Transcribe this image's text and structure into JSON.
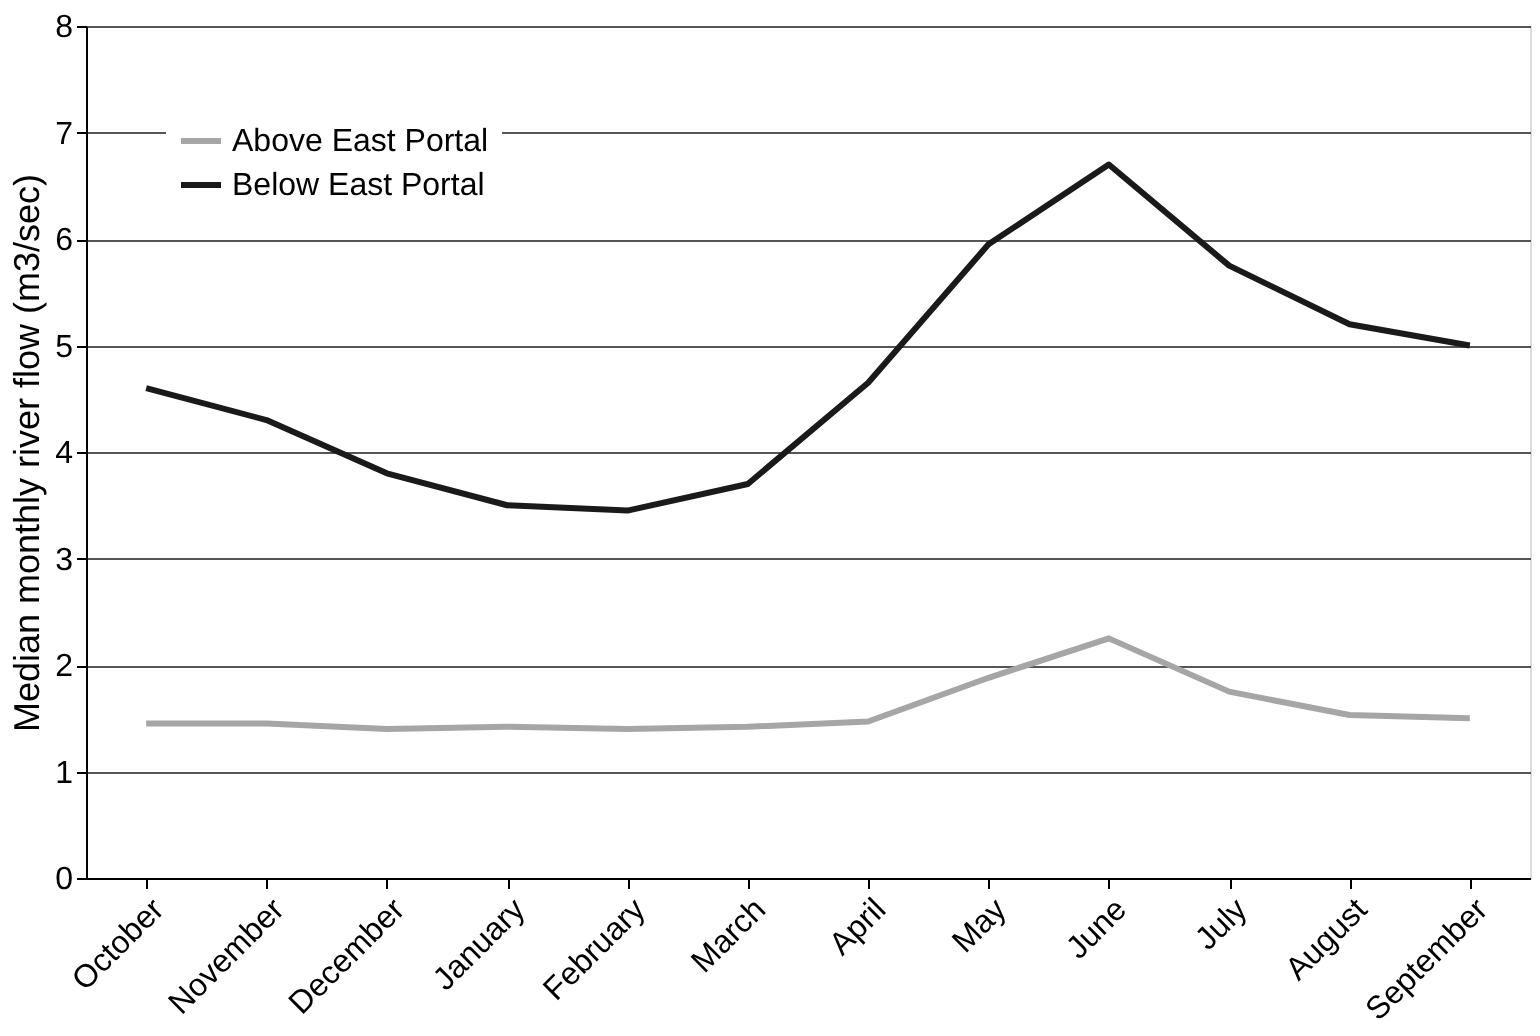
{
  "chart_data": {
    "type": "line",
    "ylabel": "Median monthly river flow (m3/sec)",
    "categories": [
      "October",
      "November",
      "December",
      "January",
      "February",
      "March",
      "April",
      "May",
      "June",
      "July",
      "August",
      "September"
    ],
    "series": [
      {
        "name": "Above East Portal",
        "color": "#a6a6a6",
        "values": [
          1.45,
          1.45,
          1.4,
          1.42,
          1.4,
          1.42,
          1.47,
          1.88,
          2.25,
          1.75,
          1.53,
          1.5
        ]
      },
      {
        "name": "Below East Portal",
        "color": "#1a1a1a",
        "values": [
          4.6,
          4.3,
          3.8,
          3.5,
          3.45,
          3.7,
          4.65,
          5.95,
          6.7,
          5.75,
          5.2,
          5.0
        ]
      }
    ],
    "ylim": [
      0,
      8
    ],
    "yticks": [
      0,
      1,
      2,
      3,
      4,
      5,
      6,
      7,
      8
    ],
    "grid": "y",
    "legend": "top left",
    "marker": "none",
    "line_style": "solid"
  }
}
